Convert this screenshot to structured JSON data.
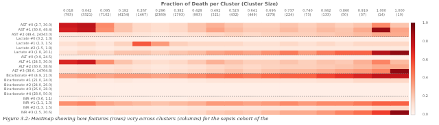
{
  "chart_data": {
    "type": "heatmap",
    "title": "Fraction of Death per Cluster (Cluster Size)",
    "caption": "Figure 3.2: Heatmap showing how features (rows) vary across clusters (columns) for the sepsis cohort of the",
    "categories": [
      "0.018\n(793)",
      "0.042\n(3321)",
      "0.095\n(7102)",
      "0.192\n(4154)",
      "0.267\n(1467)",
      "0.296\n(2389)",
      "0.382\n(1793)",
      "0.428\n(993)",
      "0.492\n(521)",
      "0.523\n(432)",
      "0.641\n(449)",
      "0.696\n(273)",
      "0.737\n(224)",
      "0.740\n(73)",
      "0.842\n(133)",
      "0.860\n(50)",
      "0.919\n(37)",
      "1.000\n(14)",
      "1.000\n(10)"
    ],
    "rows": [
      "AST #0 (2.7, 30.0)",
      "AST #1 (30.0, 49.4)",
      "AST #2 (49.4, 24343.0)",
      "Lactate #0 (0.2, 1.3)",
      "Lactate #1 (1.3, 1.5)",
      "Lactate #2 (1.5, 1.8)",
      "Lactate #3 (1.8, 20.1)",
      "ALT #0 (0.9, 24.5)",
      "ALT #1 (24.5, 30.0)",
      "ALT #2 (30.0, 38.6)",
      "ALT #3 (38.6, 14764.8)",
      "Bicarbonate #0 (4.9, 21.0)",
      "Bicarbonate #1 (21.0, 24.0)",
      "Bicarbonate #2 (24.0, 26.0)",
      "Bicarbonate #3 (26.0, 28.0)",
      "Bicarbonate #4 (28.0, 50.0)",
      "INR #0 (0.6, 1.1)",
      "INR #1 (1.1, 1.3)",
      "INR #2 (1.3, 1.5)",
      "INR #3 (1.5, 30.6)"
    ],
    "values": [
      [
        0.75,
        0.8,
        0.4,
        0.22,
        0.15,
        0.13,
        0.15,
        0.22,
        0.28,
        0.22,
        0.18,
        0.18,
        0.22,
        0.18,
        0.22,
        0.18,
        0.22,
        0.4,
        0.22
      ],
      [
        0.72,
        0.78,
        0.38,
        0.22,
        0.15,
        0.13,
        0.15,
        0.22,
        0.32,
        0.25,
        0.2,
        0.2,
        0.25,
        0.2,
        0.25,
        0.22,
        0.3,
        0.9,
        0.32
      ],
      [
        0.08,
        0.1,
        0.1,
        0.12,
        0.1,
        0.08,
        0.1,
        0.12,
        0.15,
        0.17,
        0.15,
        0.17,
        0.18,
        0.18,
        0.2,
        0.22,
        0.25,
        0.3,
        0.3
      ],
      [
        0.04,
        0.04,
        0.04,
        0.04,
        0.04,
        0.04,
        0.04,
        0.04,
        0.04,
        0.04,
        0.04,
        0.04,
        0.04,
        0.04,
        0.04,
        0.04,
        0.04,
        0.04,
        0.04
      ],
      [
        0.12,
        0.15,
        0.1,
        0.17,
        0.55,
        0.35,
        0.18,
        0.15,
        0.15,
        0.15,
        0.12,
        0.12,
        0.15,
        0.12,
        0.15,
        0.12,
        0.15,
        0.15,
        0.15
      ],
      [
        0.06,
        0.08,
        0.06,
        0.08,
        0.1,
        0.08,
        0.08,
        0.08,
        0.08,
        0.08,
        0.08,
        0.08,
        0.08,
        0.08,
        0.08,
        0.08,
        0.08,
        0.08,
        0.08
      ],
      [
        0.12,
        0.17,
        0.15,
        0.22,
        0.22,
        0.18,
        0.22,
        0.25,
        0.32,
        0.35,
        0.32,
        0.38,
        0.45,
        0.35,
        0.45,
        0.52,
        0.52,
        0.82,
        0.92
      ],
      [
        0.04,
        0.04,
        0.04,
        0.04,
        0.04,
        0.04,
        0.04,
        0.04,
        0.04,
        0.04,
        0.04,
        0.04,
        0.04,
        0.04,
        0.04,
        0.04,
        0.04,
        0.04,
        0.04
      ],
      [
        0.7,
        0.75,
        0.38,
        0.22,
        0.15,
        0.13,
        0.15,
        0.2,
        0.28,
        0.22,
        0.18,
        0.18,
        0.22,
        0.18,
        0.22,
        0.2,
        0.28,
        0.42,
        0.25
      ],
      [
        0.08,
        0.1,
        0.1,
        0.12,
        0.1,
        0.08,
        0.1,
        0.12,
        0.15,
        0.17,
        0.15,
        0.17,
        0.18,
        0.18,
        0.2,
        0.22,
        0.25,
        0.3,
        0.3
      ],
      [
        0.1,
        0.13,
        0.13,
        0.15,
        0.13,
        0.1,
        0.13,
        0.15,
        0.18,
        0.22,
        0.18,
        0.22,
        0.25,
        0.25,
        0.28,
        0.32,
        0.35,
        0.42,
        0.92
      ],
      [
        0.32,
        0.35,
        0.32,
        0.35,
        0.35,
        0.32,
        0.35,
        0.4,
        0.45,
        0.48,
        0.45,
        0.5,
        0.52,
        0.52,
        0.6,
        0.65,
        0.7,
        0.78,
        0.78
      ],
      [
        0.04,
        0.06,
        0.06,
        0.08,
        0.06,
        0.06,
        0.06,
        0.08,
        0.1,
        0.1,
        0.1,
        0.1,
        0.1,
        0.1,
        0.12,
        0.12,
        0.15,
        0.15,
        0.15
      ],
      [
        0.04,
        0.04,
        0.04,
        0.04,
        0.04,
        0.04,
        0.04,
        0.04,
        0.04,
        0.04,
        0.04,
        0.04,
        0.04,
        0.04,
        0.04,
        0.04,
        0.04,
        0.04,
        0.04
      ],
      [
        0.04,
        0.04,
        0.04,
        0.04,
        0.04,
        0.04,
        0.04,
        0.04,
        0.04,
        0.04,
        0.04,
        0.04,
        0.04,
        0.04,
        0.04,
        0.04,
        0.04,
        0.04,
        0.04
      ],
      [
        0.04,
        0.04,
        0.04,
        0.04,
        0.04,
        0.04,
        0.04,
        0.04,
        0.04,
        0.04,
        0.04,
        0.04,
        0.04,
        0.04,
        0.04,
        0.04,
        0.04,
        0.04,
        0.04
      ],
      [
        0.04,
        0.06,
        0.04,
        0.04,
        0.04,
        0.04,
        0.04,
        0.06,
        0.06,
        0.06,
        0.06,
        0.06,
        0.06,
        0.06,
        0.06,
        0.06,
        0.06,
        0.06,
        0.06
      ],
      [
        0.38,
        0.42,
        0.32,
        0.28,
        0.25,
        0.22,
        0.25,
        0.28,
        0.35,
        0.35,
        0.32,
        0.35,
        0.4,
        0.35,
        0.4,
        0.4,
        0.45,
        0.52,
        0.52
      ],
      [
        0.08,
        0.1,
        0.08,
        0.08,
        0.08,
        0.08,
        0.08,
        0.1,
        0.1,
        0.1,
        0.1,
        0.1,
        0.1,
        0.1,
        0.12,
        0.12,
        0.12,
        0.15,
        0.15
      ],
      [
        0.08,
        0.1,
        0.1,
        0.13,
        0.13,
        0.1,
        0.13,
        0.15,
        0.2,
        0.22,
        0.2,
        0.25,
        0.3,
        0.3,
        0.35,
        0.42,
        0.48,
        0.62,
        0.92
      ]
    ],
    "color": "Reds",
    "color_range": [
      0.0,
      1.0
    ],
    "color_ticks": [
      {
        "value": 0,
        "label": "0.0"
      },
      {
        "value": 0.2,
        "label": "0.2"
      },
      {
        "value": 0.4,
        "label": "0.4"
      },
      {
        "value": 0.6,
        "label": "0.6"
      },
      {
        "value": 0.8,
        "label": "0.8"
      },
      {
        "value": 1,
        "label": "1.0"
      }
    ],
    "separator_rows": [
      2,
      6,
      10,
      15
    ],
    "grid": false
  }
}
